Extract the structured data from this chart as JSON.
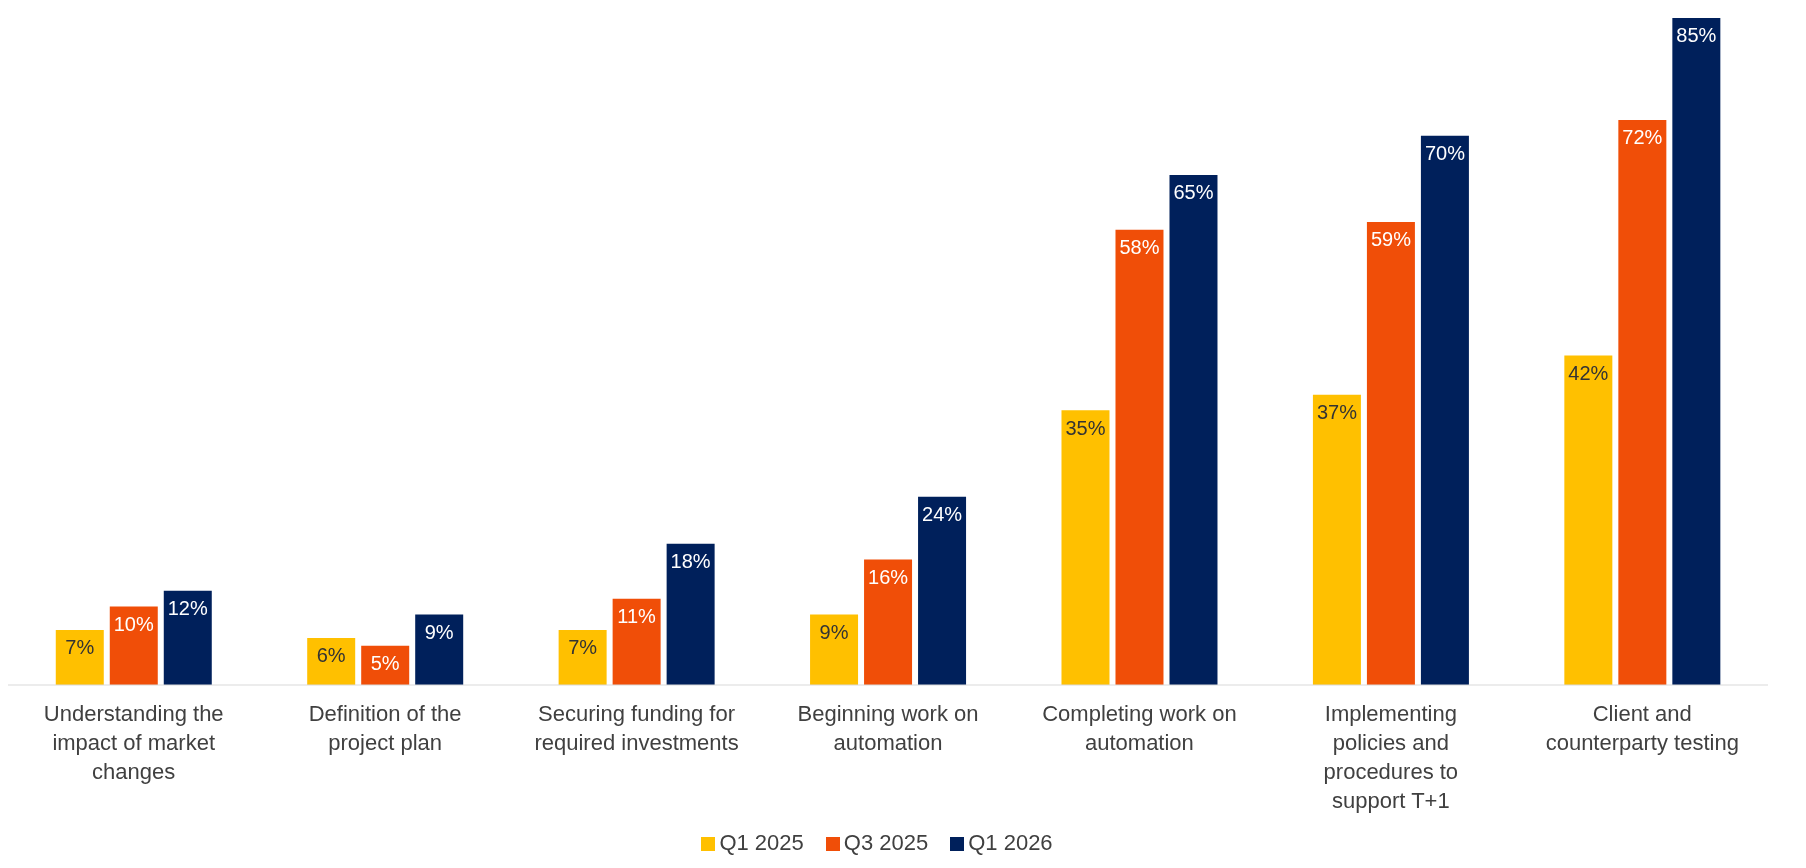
{
  "chart_data": {
    "type": "bar",
    "categories": [
      "Understanding the impact of market changes",
      "Definition of the project plan",
      "Securing funding for required investments",
      "Beginning work on automation",
      "Completing work on automation",
      "Implementing policies and procedures to support T+1",
      "Client and counterparty testing"
    ],
    "series": [
      {
        "name": "Q1 2025",
        "color": "#ffc000",
        "values": [
          7,
          6,
          7,
          9,
          35,
          37,
          42
        ],
        "value_labels": [
          "7%",
          "6%",
          "7%",
          "9%",
          "35%",
          "37%",
          "42%"
        ]
      },
      {
        "name": "Q3 2025",
        "color": "#f04e08",
        "values": [
          10,
          5,
          11,
          16,
          58,
          59,
          72
        ],
        "value_labels": [
          "10%",
          "5%",
          "11%",
          "16%",
          "58%",
          "59%",
          "72%"
        ]
      },
      {
        "name": "Q1 2026",
        "color": "#00205b",
        "values": [
          12,
          9,
          18,
          24,
          65,
          70,
          85
        ],
        "value_labels": [
          "12%",
          "9%",
          "18%",
          "24%",
          "65%",
          "70%",
          "85%"
        ]
      }
    ],
    "legend": "bottom"
  }
}
